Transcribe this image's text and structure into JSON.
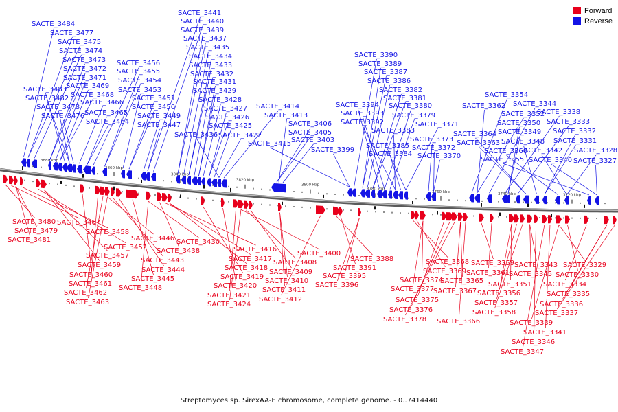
{
  "caption": "Streptomyces sp. SirexAA-E chromosome, complete genome. - 0..7414440",
  "colors": {
    "forward": "#e8001c",
    "reverse": "#1414e6",
    "backbone": "#8c8c8c"
  },
  "legend": [
    {
      "label": "Forward",
      "color": "#e8001c"
    },
    {
      "label": "Reverse",
      "color": "#1414e6"
    }
  ],
  "ticks": [
    "3880 kbp",
    "3860 kbp",
    "3840 kbp",
    "3820 kbp",
    "3800 kbp",
    "3780 kbp",
    "3760 kbp",
    "3740 kbp",
    "3720 kbp"
  ],
  "reverse_genes": [
    "SACTE_3484",
    "SACTE_3477",
    "SACTE_3475",
    "SACTE_3474",
    "SACTE_3473",
    "SACTE_3472",
    "SACTE_3471",
    "SACTE_3469",
    "SACTE_3468",
    "SACTE_3483",
    "SACTE_3482",
    "SACTE_3478",
    "SACTE_3476",
    "SACTE_3466",
    "SACTE_3465",
    "SACTE_3464",
    "SACTE_3456",
    "SACTE_3455",
    "SACTE_3454",
    "SACTE_3453",
    "SACTE_3451",
    "SACTE_3450",
    "SACTE_3449",
    "SACTE_3447",
    "SACTE_3441",
    "SACTE_3440",
    "SACTE_3439",
    "SACTE_3437",
    "SACTE_3435",
    "SACTE_3434",
    "SACTE_3433",
    "SACTE_3432",
    "SACTE_3431",
    "SACTE_3429",
    "SACTE_3428",
    "SACTE_3427",
    "SACTE_3426",
    "SACTE_3425",
    "SACTE_3436",
    "SACTE_3422",
    "SACTE_3414",
    "SACTE_3413",
    "SACTE_3406",
    "SACTE_3405",
    "SACTE_3403",
    "SACTE_3415",
    "SACTE_3399",
    "SACTE_3390",
    "SACTE_3389",
    "SACTE_3387",
    "SACTE_3386",
    "SACTE_3382",
    "SACTE_3381",
    "SACTE_3394",
    "SACTE_3380",
    "SACTE_3393",
    "SACTE_3379",
    "SACTE_3392",
    "SACTE_3383",
    "SACTE_3385",
    "SACTE_3384",
    "SACTE_3371",
    "SACTE_3373",
    "SACTE_3372",
    "SACTE_3370",
    "SACTE_3354",
    "SACTE_3362",
    "SACTE_3352",
    "SACTE_3344",
    "SACTE_3338",
    "SACTE_3350",
    "SACTE_3349",
    "SACTE_3333",
    "SACTE_3364",
    "SACTE_3363",
    "SACTE_3348",
    "SACTE_3332",
    "SACTE_3331",
    "SACTE_3360",
    "SACTE_3342",
    "SACTE_3328",
    "SACTE_3355",
    "SACTE_3340",
    "SACTE_3327"
  ],
  "forward_genes": [
    "SACTE_3480",
    "SACTE_3467",
    "SACTE_3479",
    "SACTE_3481",
    "SACTE_3458",
    "SACTE_3452",
    "SACTE_3457",
    "SACTE_3459",
    "SACTE_3460",
    "SACTE_3461",
    "SACTE_3462",
    "SACTE_3463",
    "SACTE_3446",
    "SACTE_3443",
    "SACTE_3444",
    "SACTE_3445",
    "SACTE_3448",
    "SACTE_3430",
    "SACTE_3438",
    "SACTE_3416",
    "SACTE_3417",
    "SACTE_3418",
    "SACTE_3419",
    "SACTE_3420",
    "SACTE_3421",
    "SACTE_3424",
    "SACTE_3400",
    "SACTE_3408",
    "SACTE_3409",
    "SACTE_3410",
    "SACTE_3411",
    "SACTE_3412",
    "SACTE_3388",
    "SACTE_3391",
    "SACTE_3395",
    "SACTE_3396",
    "SACTE_3368",
    "SACTE_3369",
    "SACTE_3374",
    "SACTE_3377",
    "SACTE_3375",
    "SACTE_3376",
    "SACTE_3378",
    "SACTE_3365",
    "SACTE_3367",
    "SACTE_3366",
    "SACTE_3359",
    "SACTE_3361",
    "SACTE_3351",
    "SACTE_3356",
    "SACTE_3357",
    "SACTE_3358",
    "SACTE_3343",
    "SACTE_3345",
    "SACTE_3346",
    "SACTE_3347",
    "SACTE_3341",
    "SACTE_3339",
    "SACTE_3329",
    "SACTE_3330",
    "SACTE_3334",
    "SACTE_3335",
    "SACTE_3336",
    "SACTE_3337"
  ]
}
